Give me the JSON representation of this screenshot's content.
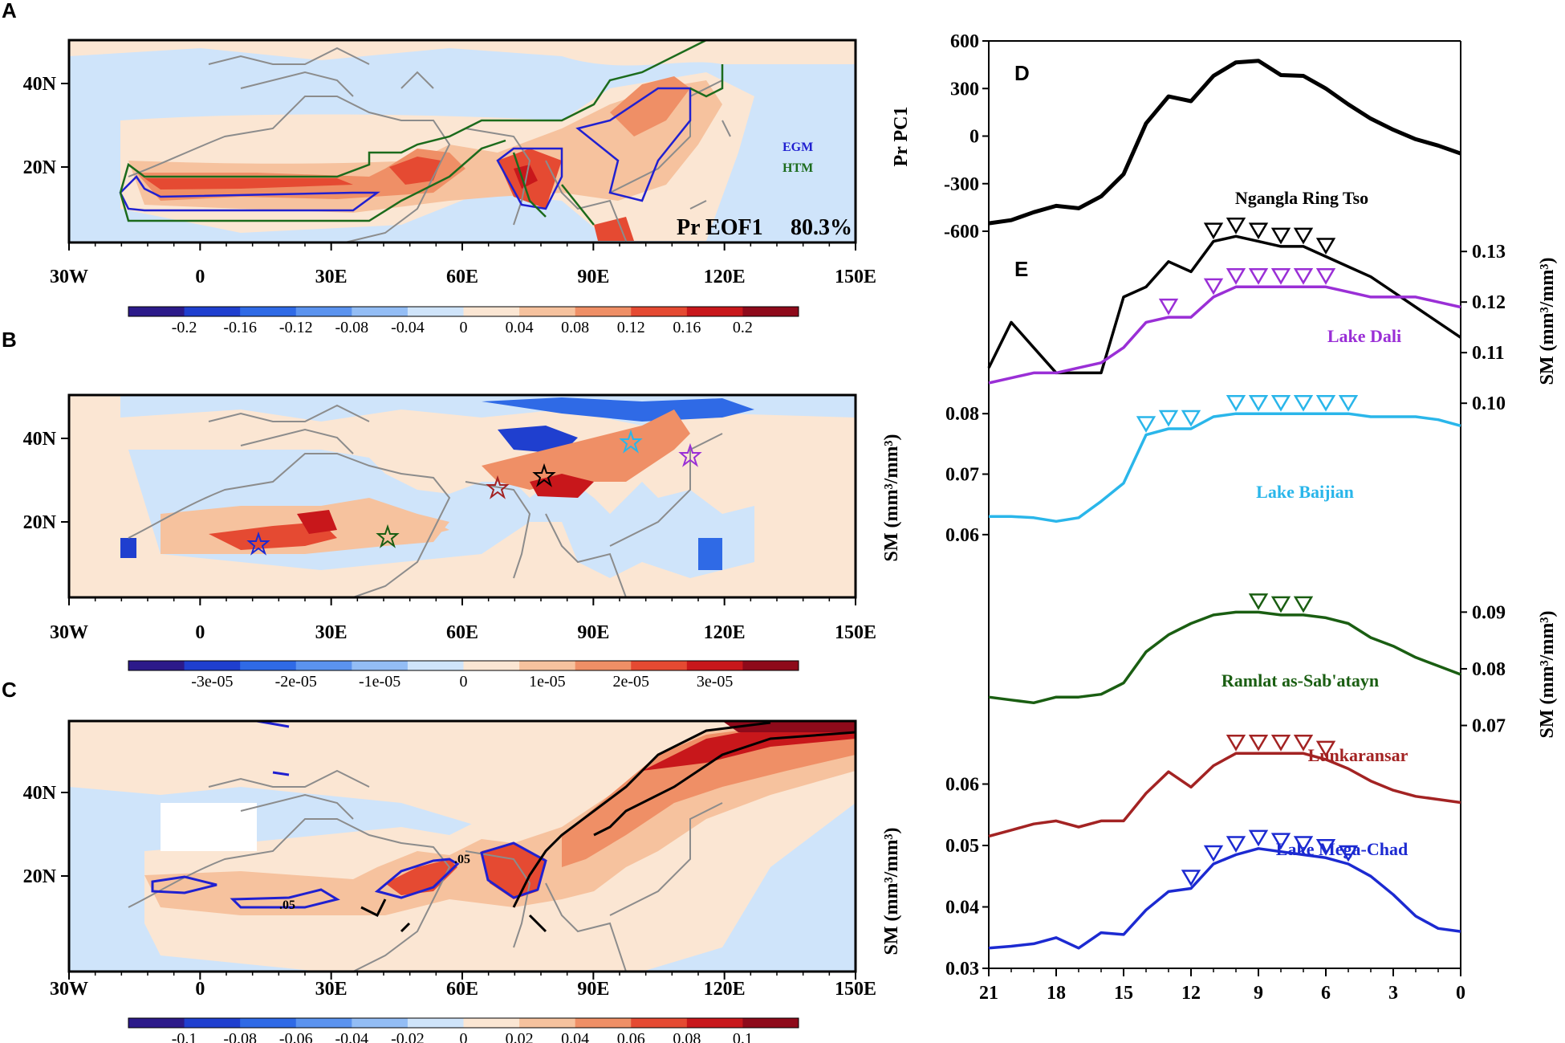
{
  "colors": {
    "diverging": [
      "#2c1a8a",
      "#1f3fcf",
      "#2f6ae6",
      "#5b93ef",
      "#93bdf5",
      "#cfe4fa",
      "#fbe6d3",
      "#f6c29e",
      "#ef8f66",
      "#e54a32",
      "#c8171b",
      "#8e0a1a"
    ],
    "wet": "#ef8f66",
    "wet_strong": "#e0331f",
    "dry": "#5b93ef",
    "dry_strong": "#1f3fcf",
    "coast": "#8c8c8c",
    "egm": "#2020d0",
    "htm": "#1c6b1c",
    "ngangla": "#000000",
    "dali": "#9a2fd6",
    "baijian": "#2ab6ea",
    "ramlat": "#1a5e12",
    "lunkaransar": "#a32323",
    "chad": "#1c2ad1"
  },
  "maps": {
    "lon_ticks": [
      "30W",
      "0",
      "30E",
      "60E",
      "90E",
      "120E",
      "150E"
    ],
    "lat_ticks": [
      "40N",
      "20N"
    ],
    "panels": [
      {
        "label": "A",
        "colorbar": [
          "-0.2",
          "-0.16",
          "-0.12",
          "-0.08",
          "-0.04",
          "0",
          "0.04",
          "0.08",
          "0.12",
          "0.16",
          "0.2"
        ],
        "legend": [
          {
            "text": "EGM",
            "color": "egm"
          },
          {
            "text": "HTM",
            "color": "htm"
          }
        ],
        "title_left": "Pr EOF1",
        "title_right": "80.3%"
      },
      {
        "label": "B",
        "colorbar": [
          "-3e-05",
          "-2e-05",
          "-1e-05",
          "0",
          "1e-05",
          "2e-05",
          "3e-05"
        ]
      },
      {
        "label": "C",
        "colorbar": [
          "-0.1",
          "-0.08",
          "-0.06",
          "-0.04",
          "-0.02",
          "0",
          "0.02",
          "0.04",
          "0.06",
          "0.08",
          "0.1"
        ],
        "contour_labels": [
          ".05",
          ".05"
        ]
      }
    ]
  },
  "chart_data": [
    {
      "type": "line",
      "panel": "D",
      "ylabel": "Pr PC1",
      "ylim": [
        -600,
        600
      ],
      "yticks": [
        "600",
        "300",
        "0",
        "-300",
        "-600"
      ],
      "xlim": [
        21,
        0
      ],
      "series": [
        {
          "name": "Pr PC1",
          "color": "ngangla",
          "x": [
            21,
            20,
            19,
            18,
            17,
            16,
            15,
            14,
            13,
            12,
            11,
            10,
            9,
            8,
            7,
            6,
            5,
            4,
            3,
            2,
            1,
            0
          ],
          "y": [
            -550,
            -530,
            -480,
            -440,
            -455,
            -380,
            -240,
            80,
            250,
            220,
            380,
            465,
            475,
            385,
            380,
            300,
            200,
            110,
            40,
            -20,
            -60,
            -110
          ]
        }
      ]
    },
    {
      "type": "line",
      "panel": "E",
      "xlabel_ticks": [
        "21",
        "18",
        "15",
        "12",
        "9",
        "6",
        "3",
        "0"
      ],
      "xlim": [
        21,
        0
      ],
      "axes": [
        {
          "side": "right",
          "label": "SM (mm³/mm³)",
          "ticks": [
            "0.13",
            "0.12",
            "0.11",
            "0.10"
          ],
          "ylim": [
            0.094,
            0.134
          ]
        },
        {
          "side": "left",
          "label": "SM (mm³/mm³)",
          "ticks": [
            "0.08",
            "0.07",
            "0.06"
          ],
          "ylim": [
            0.0475,
            0.086
          ]
        },
        {
          "side": "right",
          "label": "SM (mm³/mm³)",
          "ticks": [
            "0.09",
            "0.08",
            "0.07"
          ],
          "ylim": [
            0.062,
            0.096
          ]
        },
        {
          "side": "left",
          "label": "SM (mm³/mm³)",
          "ticks": [
            "0.06",
            "0.05",
            "0.04",
            "0.03"
          ],
          "ylim": [
            0.03,
            0.07
          ]
        }
      ],
      "series": [
        {
          "name": "Ngangla Ring Tso",
          "color": "ngangla",
          "axis": 0,
          "x": [
            21,
            20,
            19,
            18,
            17,
            16,
            15,
            14,
            13,
            12,
            11,
            10,
            9,
            8,
            7,
            6,
            5,
            4,
            3,
            2,
            1,
            0
          ],
          "y": [
            0.107,
            0.116,
            0.111,
            0.106,
            0.106,
            0.106,
            0.121,
            0.123,
            0.128,
            0.126,
            0.132,
            0.133,
            0.132,
            0.131,
            0.131,
            0.129,
            0.127,
            0.125,
            0.122,
            0.119,
            0.116,
            0.113
          ],
          "markers": [
            11,
            10,
            9,
            8,
            7,
            6
          ]
        },
        {
          "name": "Lake Dali",
          "color": "dali",
          "axis": 0,
          "x": [
            21,
            20,
            19,
            18,
            17,
            16,
            15,
            14,
            13,
            12,
            11,
            10,
            9,
            8,
            7,
            6,
            5,
            4,
            3,
            2,
            1,
            0
          ],
          "y": [
            0.104,
            0.105,
            0.106,
            0.106,
            0.107,
            0.108,
            0.111,
            0.116,
            0.117,
            0.117,
            0.121,
            0.123,
            0.123,
            0.123,
            0.123,
            0.123,
            0.122,
            0.121,
            0.121,
            0.121,
            0.12,
            0.119
          ],
          "markers": [
            13,
            11,
            10,
            9,
            8,
            7,
            6
          ]
        },
        {
          "name": "Lake Baijian",
          "color": "baijian",
          "axis": 1,
          "x": [
            21,
            20,
            19,
            18,
            17,
            16,
            15,
            14,
            13,
            12,
            11,
            10,
            9,
            8,
            7,
            6,
            5,
            4,
            3,
            2,
            1,
            0
          ],
          "y": [
            0.063,
            0.063,
            0.0628,
            0.0622,
            0.0628,
            0.0655,
            0.0685,
            0.0765,
            0.0775,
            0.0775,
            0.0795,
            0.08,
            0.08,
            0.08,
            0.08,
            0.08,
            0.08,
            0.0795,
            0.0795,
            0.0795,
            0.079,
            0.078
          ],
          "markers": [
            14,
            13,
            12,
            10,
            9,
            8,
            7,
            6,
            5
          ]
        },
        {
          "name": "Ramlat as-Sab'atayn",
          "color": "ramlat",
          "axis": 2,
          "x": [
            21,
            20,
            19,
            18,
            17,
            16,
            15,
            14,
            13,
            12,
            11,
            10,
            9,
            8,
            7,
            6,
            5,
            4,
            3,
            2,
            1,
            0
          ],
          "y": [
            0.075,
            0.0745,
            0.074,
            0.075,
            0.075,
            0.0755,
            0.0775,
            0.083,
            0.086,
            0.088,
            0.0895,
            0.09,
            0.09,
            0.0895,
            0.0895,
            0.089,
            0.088,
            0.0855,
            0.084,
            0.082,
            0.0805,
            0.079
          ],
          "markers": [
            9,
            8,
            7
          ]
        },
        {
          "name": "Lunkaransar",
          "color": "lunkaransar",
          "axis": 3,
          "x": [
            21,
            20,
            19,
            18,
            17,
            16,
            15,
            14,
            13,
            12,
            11,
            10,
            9,
            8,
            7,
            6,
            5,
            4,
            3,
            2,
            1,
            0
          ],
          "y": [
            0.0515,
            0.0525,
            0.0535,
            0.054,
            0.053,
            0.054,
            0.054,
            0.0585,
            0.062,
            0.0595,
            0.063,
            0.065,
            0.065,
            0.065,
            0.065,
            0.064,
            0.0625,
            0.0605,
            0.059,
            0.058,
            0.0575,
            0.057
          ],
          "markers": [
            10,
            9,
            8,
            7,
            6
          ]
        },
        {
          "name": "Lake Mega-Chad",
          "color": "chad",
          "axis": 3,
          "x": [
            21,
            20,
            19,
            18,
            17,
            16,
            15,
            14,
            13,
            12,
            11,
            10,
            9,
            8,
            7,
            6,
            5,
            4,
            3,
            2,
            1,
            0
          ],
          "y": [
            0.0333,
            0.0336,
            0.034,
            0.035,
            0.0333,
            0.0358,
            0.0355,
            0.0395,
            0.0425,
            0.043,
            0.047,
            0.0485,
            0.0495,
            0.049,
            0.0485,
            0.048,
            0.047,
            0.045,
            0.042,
            0.0385,
            0.0365,
            0.036
          ],
          "markers": [
            12,
            11,
            10,
            9,
            8,
            7,
            6,
            5
          ]
        }
      ],
      "labels": [
        {
          "text": "Ngangla Ring Tso",
          "color": "ngangla"
        },
        {
          "text": "Lake Dali",
          "color": "dali"
        },
        {
          "text": "Lake Baijian",
          "color": "baijian"
        },
        {
          "text": "Ramlat as-Sab'atayn",
          "color": "ramlat"
        },
        {
          "text": "Lunkaransar",
          "color": "lunkaransar"
        },
        {
          "text": "Lake Mega-Chad",
          "color": "chad"
        }
      ]
    }
  ]
}
